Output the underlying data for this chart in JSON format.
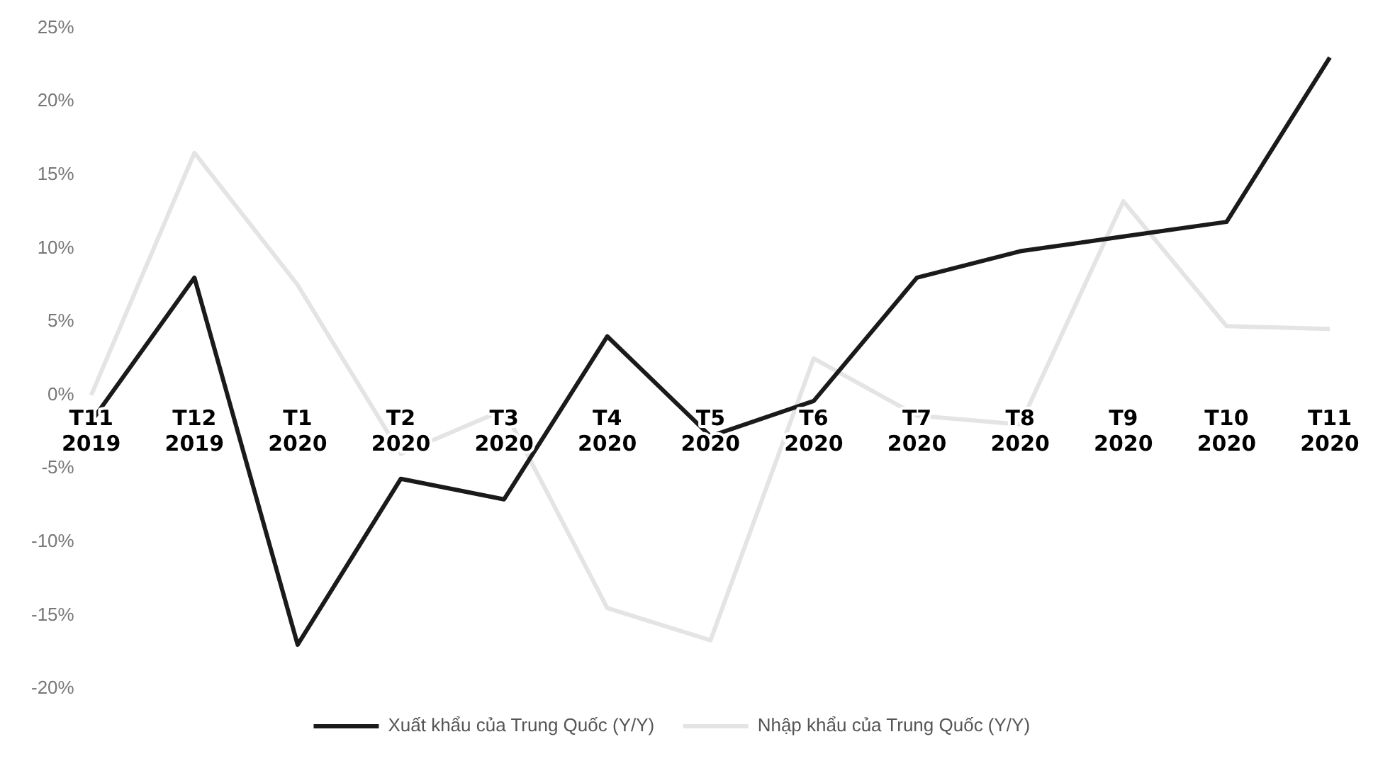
{
  "chart_data": {
    "type": "line",
    "categories": [
      "T11 2019",
      "T12 2019",
      "T1 2020",
      "T2 2020",
      "T3 2020",
      "T4 2020",
      "T5 2020",
      "T6 2020",
      "T7 2020",
      "T8 2020",
      "T9 2020",
      "T10 2020",
      "T11 2020"
    ],
    "series": [
      {
        "name": "Xuất khẩu của Trung Quốc (Y/Y)",
        "color": "#1a1a1a",
        "values": [
          -1.8,
          8,
          -17,
          -5.7,
          -7.1,
          4,
          -2.8,
          -0.4,
          8,
          9.8,
          10.8,
          11.8,
          23
        ]
      },
      {
        "name": "Nhập khẩu của Trung Quốc (Y/Y)",
        "color": "#e4e4e4",
        "values": [
          0,
          16.5,
          7.5,
          -4,
          -1,
          -14.5,
          -16.7,
          2.5,
          -1.4,
          -2,
          13.2,
          4.7,
          4.5
        ]
      }
    ],
    "ylim": [
      -20,
      25
    ],
    "yticks": [
      {
        "value": -20,
        "label": "-20%"
      },
      {
        "value": -15,
        "label": "-15%"
      },
      {
        "value": -10,
        "label": "-10%"
      },
      {
        "value": -5,
        "label": "-5%"
      },
      {
        "value": 0,
        "label": "0%"
      },
      {
        "value": 5,
        "label": "5%"
      },
      {
        "value": 10,
        "label": "10%"
      },
      {
        "value": 15,
        "label": "15%"
      },
      {
        "value": 20,
        "label": "20%"
      },
      {
        "value": 25,
        "label": "25%"
      }
    ],
    "grid": false,
    "legend": "bottom",
    "marker": "none",
    "line_style": "solid"
  }
}
